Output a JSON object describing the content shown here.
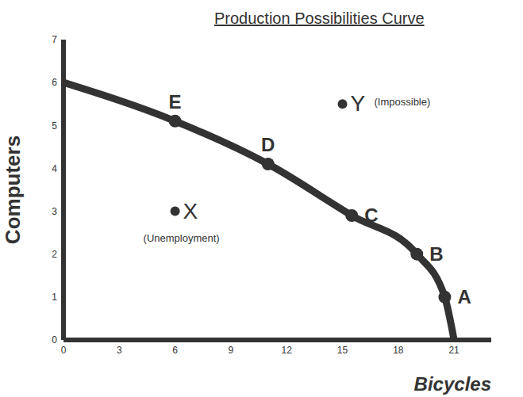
{
  "chart_data": {
    "type": "line",
    "title": "Production Possibilities Curve",
    "x_label": "Bicycles",
    "y_label": "Computers",
    "xlim": [
      0,
      23
    ],
    "xticks": [
      0,
      3,
      6,
      9,
      12,
      15,
      18,
      21
    ],
    "ylim": [
      0,
      7
    ],
    "yticks": [
      0,
      1,
      2,
      3,
      4,
      5,
      6,
      7
    ],
    "grid": false,
    "x": [
      0,
      6,
      11,
      15.5,
      19,
      20.5,
      21
    ],
    "series": [
      {
        "color": "#333333",
        "values": [
          6,
          5.1,
          4.1,
          2.9,
          2,
          1,
          0
        ]
      }
    ],
    "points": [
      {
        "label": "E",
        "x": 6,
        "y": 5.1
      },
      {
        "label": "D",
        "x": 11,
        "y": 4.1
      },
      {
        "label": "C",
        "x": 15.5,
        "y": 2.9
      },
      {
        "label": "B",
        "x": 19,
        "y": 2
      },
      {
        "label": "A",
        "x": 20.5,
        "y": 1
      }
    ],
    "annotations": [
      {
        "label": "X",
        "text": "(Unemployment)",
        "x": 6,
        "y": 3
      },
      {
        "label": "Y",
        "text": "(Impossible)",
        "x": 15,
        "y": 5.5
      }
    ],
    "color": "#333333"
  }
}
